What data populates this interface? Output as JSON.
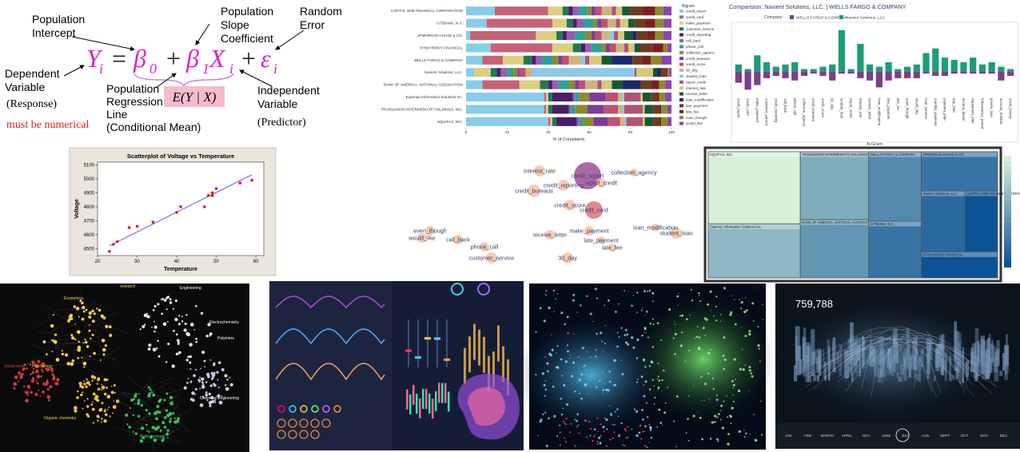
{
  "regression": {
    "intercept_label": [
      "Population",
      "Intercept"
    ],
    "slope_label": [
      "Population",
      "Slope",
      "Coefficient"
    ],
    "error_label": [
      "Random",
      "Error"
    ],
    "equation": [
      "Y",
      "i",
      "=",
      "β",
      "0",
      "+",
      "β",
      "1",
      "X",
      "i",
      "+",
      "ε",
      "i"
    ],
    "dependent_label": [
      "Dependent",
      "Variable"
    ],
    "response": "(Response)",
    "numerical_note": "must be numerical",
    "line_label": [
      "Population",
      "Regression",
      "Line",
      "(Conditional Mean)"
    ],
    "conditional_mean": "E(Y | X)",
    "independent_label": [
      "Independent",
      "Variable"
    ],
    "predictor": "(Predictor)"
  },
  "chart_data": [
    {
      "type": "stacked-bar",
      "categories": [
        "CAPITAL ONE FINANCIAL CORPORATION",
        "CITIBANK, N.A.",
        "JPMORGAN CHASE & CO.",
        "SYNCHRONY FINANCIAL",
        "WELLS FARGO & COMPANY",
        "Navient Solutions, LLC.",
        "BANK OF AMERICA, NATIONAL ASSOCIATION",
        "Experian Information Solutions Inc.",
        "TRANSUNION INTERMEDIATE HOLDINGS, INC.",
        "EQUIFAX, INC."
      ],
      "xlabel": "% of Complaints",
      "xlim": [
        0,
        100
      ],
      "xticks": [
        0,
        20,
        40,
        60,
        80,
        100
      ],
      "legend_title": "Bigram",
      "series": [
        {
          "name": "credit_report",
          "color": "#87cdea",
          "values": [
            14,
            10,
            2,
            12,
            8,
            4,
            8,
            38,
            38,
            40
          ]
        },
        {
          "name": "credit_card",
          "color": "#c76177",
          "values": [
            26,
            32,
            32,
            30,
            10,
            0,
            18,
            1,
            1,
            1
          ]
        },
        {
          "name": "make_payment",
          "color": "#dccf7e",
          "values": [
            7,
            7,
            10,
            10,
            10,
            8,
            10,
            1,
            1,
            1
          ]
        },
        {
          "name": "customer_service",
          "color": "#1f7a4f",
          "values": [
            3,
            3,
            3,
            4,
            4,
            3,
            4,
            2,
            2,
            2
          ]
        },
        {
          "name": "credit_reporting",
          "color": "#4b1d6b",
          "values": [
            2,
            2,
            2,
            2,
            2,
            2,
            2,
            10,
            8,
            10
          ]
        },
        {
          "name": "call_back",
          "color": "#9b59b6",
          "values": [
            3,
            3,
            4,
            3,
            3,
            3,
            3,
            1,
            1,
            1
          ]
        },
        {
          "name": "phone_call",
          "color": "#2aa198",
          "values": [
            4,
            5,
            5,
            5,
            5,
            3,
            5,
            2,
            2,
            2
          ]
        },
        {
          "name": "collection_agency",
          "color": "#8e8a2e",
          "values": [
            2,
            2,
            3,
            2,
            3,
            2,
            3,
            5,
            6,
            5
          ]
        },
        {
          "name": "credit_bureaus",
          "color": "#7d3c98",
          "values": [
            2,
            2,
            2,
            2,
            2,
            1,
            2,
            8,
            8,
            7
          ]
        },
        {
          "name": "credit_score",
          "color": "#c0506e",
          "values": [
            3,
            3,
            3,
            3,
            3,
            3,
            3,
            6,
            7,
            6
          ]
        },
        {
          "name": "30_day",
          "color": "#cdb47e",
          "values": [
            5,
            4,
            4,
            4,
            6,
            3,
            6,
            2,
            2,
            2
          ]
        },
        {
          "name": "student_loan",
          "color": "#8ec8e8",
          "values": [
            0,
            0,
            2,
            0,
            2,
            50,
            0,
            1,
            1,
            1
          ]
        },
        {
          "name": "report_credit",
          "color": "#b05470",
          "values": [
            2,
            2,
            2,
            2,
            2,
            1,
            2,
            8,
            9,
            8
          ]
        },
        {
          "name": "interest_rate",
          "color": "#d7c77a",
          "values": [
            3,
            4,
            3,
            3,
            6,
            8,
            5,
            1,
            1,
            1
          ]
        },
        {
          "name": "receive_letter",
          "color": "#145a32",
          "values": [
            4,
            3,
            4,
            3,
            5,
            2,
            5,
            4,
            4,
            4
          ]
        },
        {
          "name": "loan_modification",
          "color": "#1b2a6b",
          "values": [
            0,
            0,
            2,
            0,
            10,
            2,
            9,
            0,
            0,
            0
          ]
        },
        {
          "name": "late_payment",
          "color": "#6e3b1f",
          "values": [
            6,
            5,
            5,
            6,
            5,
            2,
            5,
            3,
            3,
            3
          ]
        },
        {
          "name": "late_fee",
          "color": "#7a1f1f",
          "values": [
            6,
            5,
            4,
            5,
            4,
            1,
            4,
            1,
            1,
            1
          ]
        },
        {
          "name": "even_though",
          "color": "#8b8b2a",
          "values": [
            4,
            4,
            4,
            2,
            5,
            1,
            3,
            3,
            3,
            3
          ]
        },
        {
          "name": "would_like",
          "color": "#8e44ad",
          "values": [
            4,
            4,
            4,
            2,
            5,
            1,
            3,
            3,
            2,
            2
          ]
        }
      ]
    },
    {
      "type": "diverging-bar",
      "title": "Comparision: Navient Solutions, LLC. | WELLS FARGO & COMPANY",
      "legend_title": "Company:",
      "xlabel": "N-Gram",
      "ylim": [
        -5,
        10
      ],
      "categories": [
        "credit_report",
        "credit_card",
        "make_payment",
        "customer_service",
        "credit_reporting",
        "call_back",
        "phone_call",
        "collection_agency",
        "credit_bureaus",
        "credit_score",
        "30_day",
        "student_loan",
        "report_credit",
        "interest_rate",
        "receive_letter",
        "loan_modification",
        "late_payment",
        "late_fee",
        "even_though",
        "would_like",
        "loan_servicer",
        "monthly_payment",
        "payment_plan",
        "pay_loan",
        "income_driven",
        "repayment_plan",
        "forbearance_period",
        "private_loan",
        "account_number",
        "credit_history"
      ],
      "series": [
        {
          "name": "WELLS FARGO & COMPANY",
          "color": "#7b3f8c",
          "values": [
            -2.5,
            -4,
            -3,
            -1.5,
            -1,
            -1.5,
            -2,
            -1,
            -0.5,
            -1,
            -2,
            -0.5,
            -0.5,
            -1.5,
            -2,
            -3.5,
            -2,
            -1.5,
            -1.5,
            -1.5,
            -0.5,
            -1,
            -1,
            -0.5,
            -0.5,
            -0.5,
            -0.5,
            -0.5,
            -2,
            -1
          ]
        },
        {
          "name": "Navient Solutions, LLC.",
          "color": "#1a9e77",
          "values": [
            1.5,
            0.5,
            3.5,
            2,
            1,
            1.5,
            2,
            0.5,
            0.5,
            1,
            1.5,
            9,
            0.5,
            6,
            1.5,
            1,
            2,
            0.5,
            1,
            1.5,
            4,
            5,
            3,
            2.5,
            2,
            3,
            1.5,
            2,
            1,
            0.5
          ]
        }
      ]
    },
    {
      "type": "scatter",
      "title": "Scatterplot of Voltage vs Temperature",
      "xlabel": "Temperature",
      "ylabel": "Voltage",
      "xlim": [
        20,
        62
      ],
      "ylim": [
        4450,
        5120
      ],
      "xticks": [
        20,
        30,
        40,
        50,
        60
      ],
      "yticks": [
        4500,
        4600,
        4700,
        4800,
        4900,
        5000,
        5100
      ],
      "color": "#e8141e",
      "x": [
        23,
        24,
        25,
        28,
        30,
        34,
        40,
        41,
        47,
        48,
        49,
        49,
        50,
        56,
        59
      ],
      "values": [
        4480,
        4530,
        4550,
        4650,
        4660,
        4690,
        4760,
        4800,
        4800,
        4880,
        4900,
        4880,
        4930,
        4970,
        4990
      ],
      "fit": {
        "color": "#3c3cf0",
        "x": [
          23,
          59
        ],
        "values": [
          4520,
          5030
        ]
      }
    },
    {
      "type": "bubble",
      "categories": [
        "interest_rate",
        "credit_report",
        "collection_agency",
        "credit_reporting",
        "report_credit",
        "credit_bureaus",
        "credit_score",
        "credit_card",
        "make_payment",
        "loan_modification",
        "student_loan",
        "receive_letter",
        "late_payment",
        "late_fee",
        "even_though",
        "would_like",
        "call_back",
        "phone_call",
        "customer_service",
        "30_day"
      ],
      "values": [
        7,
        17,
        5,
        7,
        6,
        8,
        7,
        11,
        6,
        5,
        7,
        6,
        5,
        5,
        6,
        6,
        6,
        6,
        7,
        7
      ]
    },
    {
      "type": "treemap",
      "categories": [
        "EQUIFAX, INC.",
        "Experian Information Solutions Inc.",
        "TRANSUNION INTERMEDIATE HOLDINGS, INC.",
        "BANK OF AMERICA, NATIONAL ASSOCIATION",
        "WELLS FARGO & COMPANY",
        "CITIBANK, N.A.",
        "JPMORGAN CHASE & CO.",
        "Navient Solutions, LLC.",
        "CAPITAL ONE FINANCIAL CORPORATION",
        "SYNCHRONY FINANCIAL"
      ],
      "values": [
        100,
        75,
        70,
        60,
        55,
        45,
        45,
        40,
        30,
        30
      ]
    }
  ],
  "images": {
    "network_labels": [
      "Economics",
      "research",
      "Engineering",
      "Electrochemistry",
      "Polymers",
      "Social work",
      "Psychology",
      "Organic chemistry",
      "Biotechnology",
      "Chemical Engineering"
    ],
    "city_counter": "759,788",
    "months": [
      "JAN",
      "FEB",
      "MARCH",
      "APRIL",
      "MAY",
      "JUNE",
      "JULY",
      "AUG",
      "SEPT",
      "OCT",
      "NOV",
      "DEC"
    ]
  }
}
